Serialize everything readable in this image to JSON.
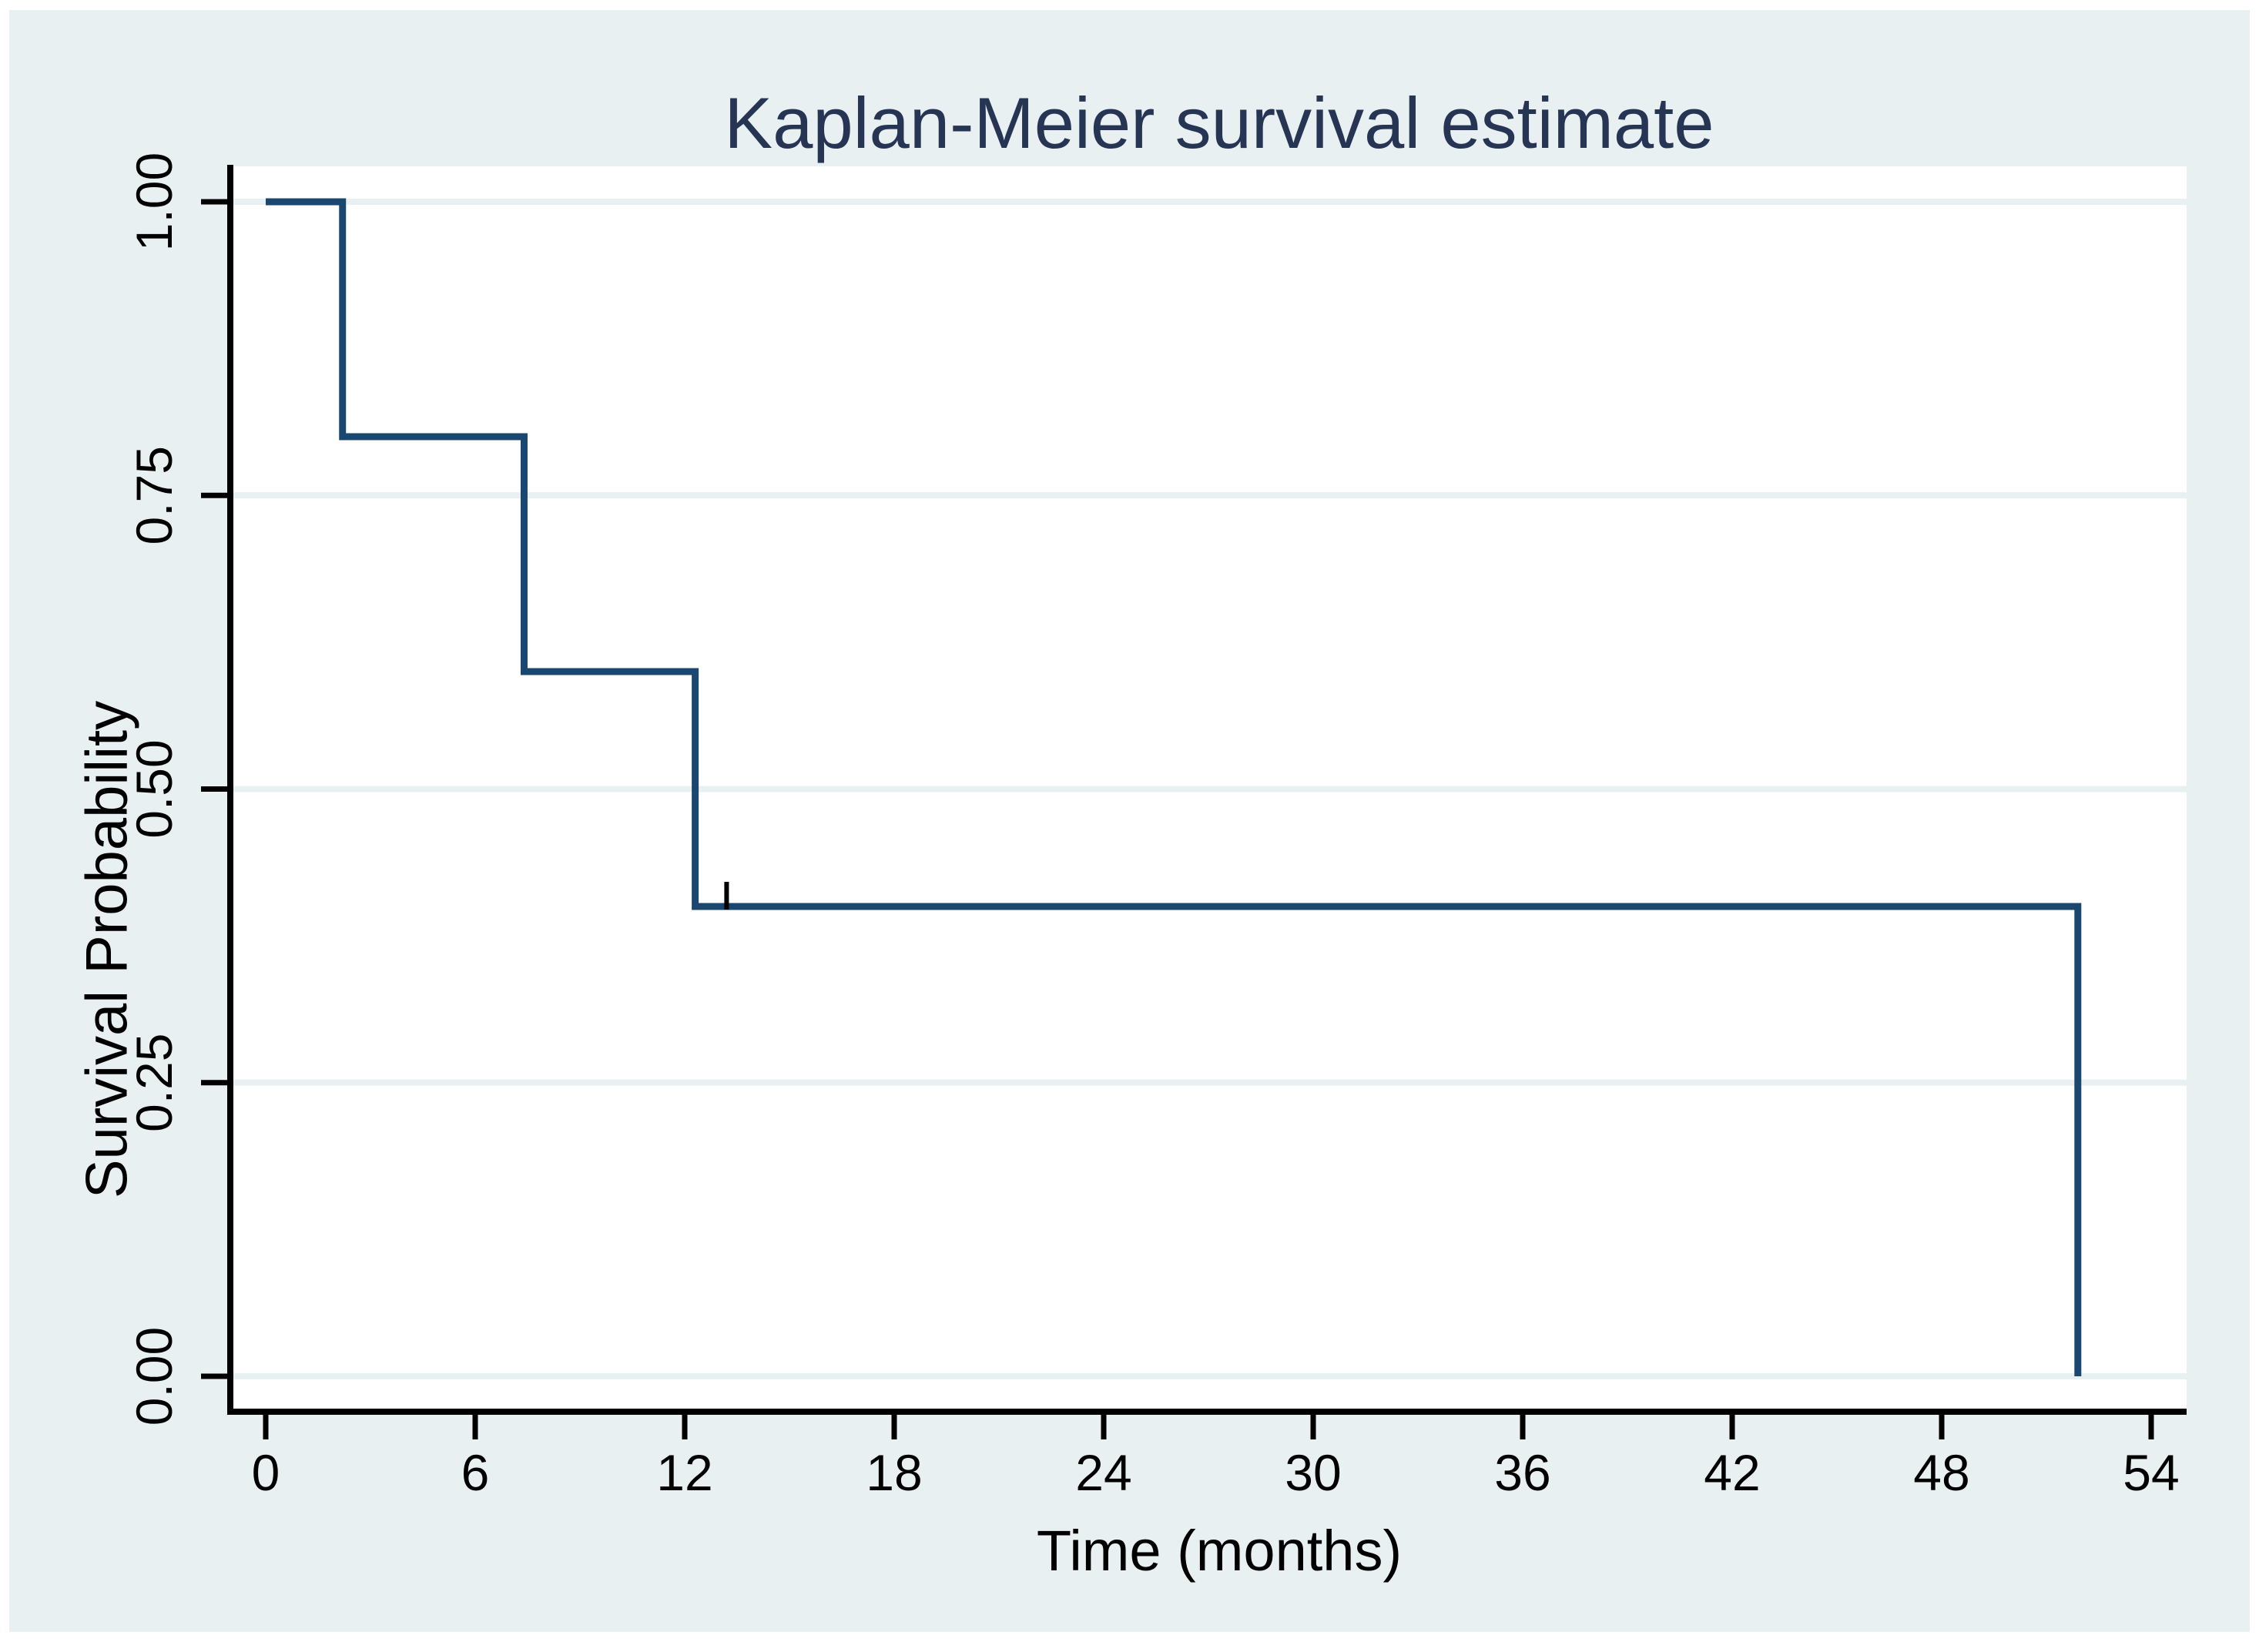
{
  "chart_data": {
    "type": "line",
    "subtype": "kaplan-meier-step",
    "title": "Kaplan-Meier survival estimate",
    "xlabel": "Time (months)",
    "ylabel": "Survival Probability",
    "xlim": [
      0,
      55
    ],
    "ylim": [
      0,
      1
    ],
    "grid": "horizontal",
    "legend": "none",
    "xticks": [
      {
        "v": 0,
        "label": "0"
      },
      {
        "v": 6,
        "label": "6"
      },
      {
        "v": 12,
        "label": "12"
      },
      {
        "v": 18,
        "label": "18"
      },
      {
        "v": 24,
        "label": "24"
      },
      {
        "v": 30,
        "label": "30"
      },
      {
        "v": 36,
        "label": "36"
      },
      {
        "v": 42,
        "label": "42"
      },
      {
        "v": 48,
        "label": "48"
      },
      {
        "v": 54,
        "label": "54"
      }
    ],
    "yticks": [
      {
        "v": 0.0,
        "label": "0.00"
      },
      {
        "v": 0.25,
        "label": "0.25"
      },
      {
        "v": 0.5,
        "label": "0.50"
      },
      {
        "v": 0.75,
        "label": "0.75"
      },
      {
        "v": 1.0,
        "label": "1.00"
      }
    ],
    "series": [
      {
        "name": "Survival estimate",
        "color": "#1a476f",
        "steps": [
          {
            "t": 0,
            "s": 1.0
          },
          {
            "t": 2.2,
            "s": 0.8
          },
          {
            "t": 7.4,
            "s": 0.6
          },
          {
            "t": 12.3,
            "s": 0.4
          },
          {
            "t": 51.9,
            "s": 0.0
          }
        ]
      }
    ],
    "censored": [
      {
        "t": 13.2,
        "s": 0.4
      }
    ],
    "colors": {
      "figure_background": "#e9f0f2",
      "plot_background": "#ffffff",
      "gridline": "#e9f0f2",
      "axis": "#000000",
      "curve": "#1a476f",
      "censor_mark": "#000000",
      "title": "#263554",
      "tick_text": "#000000"
    }
  }
}
